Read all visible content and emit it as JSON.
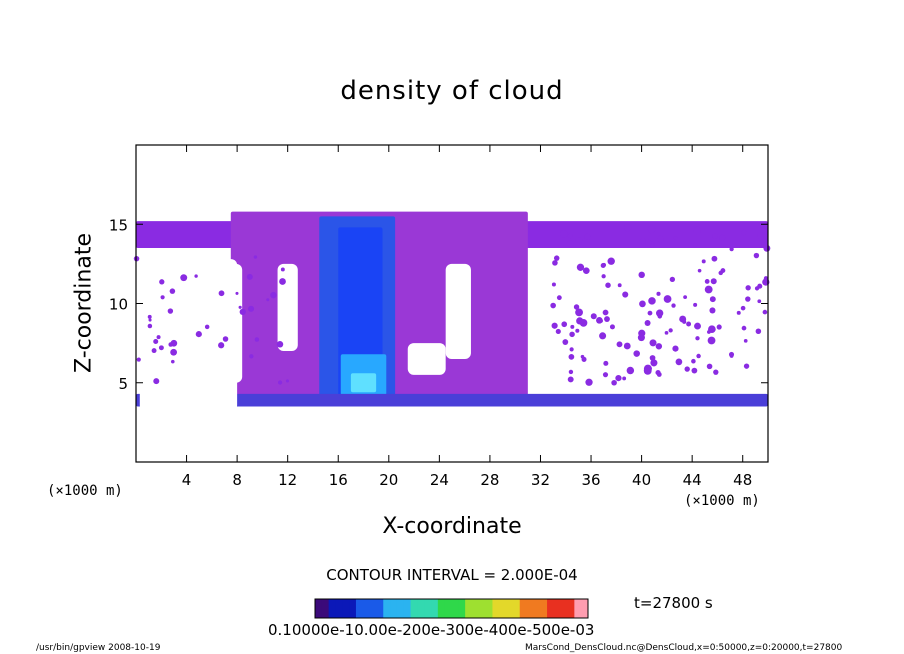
{
  "chart_data": {
    "type": "heatmap",
    "title": "density of cloud",
    "xlabel": "X-coordinate",
    "ylabel": "Z-coordinate",
    "x_unit_left": "(×1000 m)",
    "x_unit_right": "(×1000 m)",
    "xlim": [
      0,
      50
    ],
    "ylim": [
      0,
      20
    ],
    "xticks": [
      4,
      8,
      12,
      16,
      20,
      24,
      28,
      32,
      36,
      40,
      44,
      48
    ],
    "yticks": [
      5,
      10,
      15
    ],
    "contour_interval": "CONTOUR INTERVAL = 2.000E-04",
    "time_label": "t=27800  s",
    "colorbar_labels": "0.10000e-10.00e-200e-300e-400e-500e-03",
    "colorbar_colors": [
      "#3b0a7a",
      "#0b18b8",
      "#1a5ae8",
      "#2bb3f0",
      "#33d9b0",
      "#2fd84a",
      "#9ee030",
      "#e3d82a",
      "#f07a20",
      "#e83020",
      "#ff9db0"
    ],
    "field_colors": {
      "background": "#ffffff",
      "purple": "#8a2be2",
      "violet": "#9a38d6",
      "blue_low": "#4a3fd8",
      "blue_mid": "#2b55e8",
      "blue_core": "#1a44f5",
      "cyan_core": "#28a8ff",
      "cyan_bright": "#5fe0ff"
    },
    "regions": [
      {
        "name": "cloud-top-band",
        "x0": 0,
        "x1": 50,
        "z0": 13.5,
        "z1": 15.2,
        "color": "purple"
      },
      {
        "name": "main-tower",
        "x0": 7.5,
        "x1": 31,
        "z0": 3.8,
        "z1": 15.8,
        "color": "violet"
      },
      {
        "name": "core-column",
        "x0": 14.5,
        "x1": 20.5,
        "z0": 4,
        "z1": 15.5,
        "color": "blue_mid"
      },
      {
        "name": "core-inner",
        "x0": 16,
        "x1": 19.5,
        "z0": 4.2,
        "z1": 14.8,
        "color": "blue_core"
      },
      {
        "name": "core-base",
        "x0": 16.2,
        "x1": 19.8,
        "z0": 4.2,
        "z1": 6.8,
        "color": "cyan_core"
      },
      {
        "name": "core-base-bright",
        "x0": 17,
        "x1": 19,
        "z0": 4.4,
        "z1": 5.6,
        "color": "cyan_bright"
      },
      {
        "name": "bottom-layer",
        "x0": 0,
        "x1": 50,
        "z0": 3.5,
        "z1": 4.3,
        "color": "blue_low"
      }
    ]
  },
  "footer": {
    "left": "/usr/bin/gpview   2008-10-19",
    "right": "MarsCond_DensCloud.nc@DensCloud,x=0:50000,z=0:20000,t=27800"
  }
}
